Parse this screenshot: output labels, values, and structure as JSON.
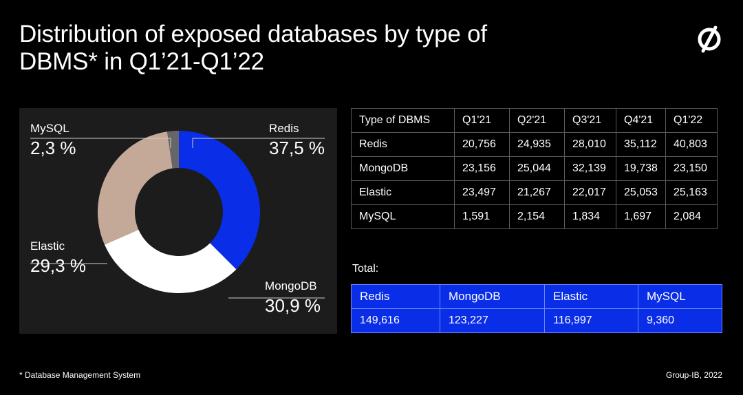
{
  "title": "Distribution of exposed databases by type of DBMS* in Q1’21-Q1’22",
  "logo_icon": "group-ib-logo-icon",
  "chart_data": {
    "type": "pie",
    "variant": "donut",
    "slices": [
      {
        "name": "Redis",
        "value": 37.5,
        "label": "37,5 %",
        "color": "#0a2ee8"
      },
      {
        "name": "MongoDB",
        "value": 30.9,
        "label": "30,9 %",
        "color": "#ffffff"
      },
      {
        "name": "Elastic",
        "value": 29.3,
        "label": "29,3 %",
        "color": "#c4a898"
      },
      {
        "name": "MySQL",
        "value": 2.3,
        "label": "2,3 %",
        "color": "#666666"
      }
    ]
  },
  "quarter_table": {
    "headers": [
      "Type of DBMS",
      "Q1'21",
      "Q2'21",
      "Q3'21",
      "Q4'21",
      "Q1'22"
    ],
    "rows": [
      [
        "Redis",
        "20,756",
        "24,935",
        "28,010",
        "35,112",
        "40,803"
      ],
      [
        "MongoDB",
        "23,156",
        "25,044",
        "32,139",
        "19,738",
        "23,150"
      ],
      [
        "Elastic",
        "23,497",
        "21,267",
        "22,017",
        "25,053",
        "25,163"
      ],
      [
        "MySQL",
        "1,591",
        "2,154",
        "1,834",
        "1,697",
        "2,084"
      ]
    ]
  },
  "total": {
    "label": "Total:",
    "headers": [
      "Redis",
      "MongoDB",
      "Elastic",
      "MySQL"
    ],
    "values": [
      "149,616",
      "123,227",
      "116,997",
      "9,360"
    ]
  },
  "footnote": "* Database Management System",
  "credit": "Group-IB, 2022"
}
